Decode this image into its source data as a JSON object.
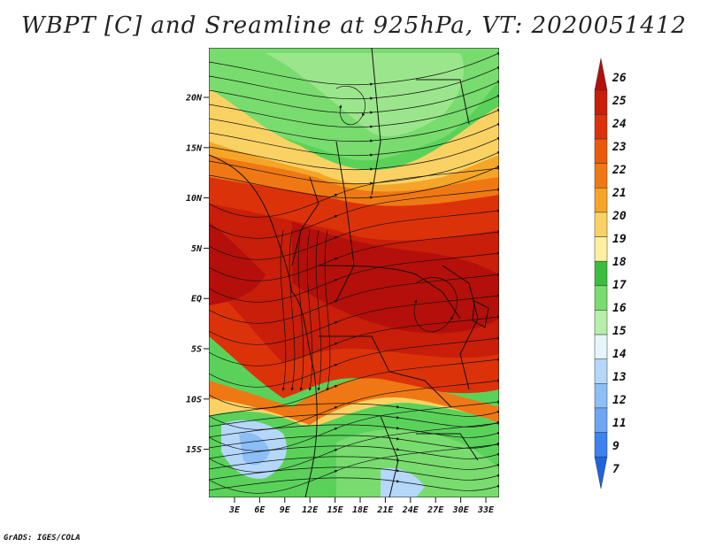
{
  "title": "WBPT [C] and Sreamline at 925hPa, VT: 2020051412",
  "credit": "GrADS: IGES/COLA",
  "map": {
    "lat_labels": [
      "20N",
      "15N",
      "10N",
      "5N",
      "EQ",
      "5S",
      "10S",
      "15S"
    ],
    "lon_labels": [
      "3E",
      "6E",
      "9E",
      "12E",
      "15E",
      "18E",
      "21E",
      "24E",
      "27E",
      "30E",
      "33E"
    ]
  },
  "colorbar": {
    "levels": [
      "7",
      "9",
      "11",
      "12",
      "13",
      "14",
      "15",
      "16",
      "17",
      "18",
      "19",
      "20",
      "21",
      "22",
      "23",
      "24",
      "25",
      "26"
    ],
    "colors": [
      "#1e64dc",
      "#3c82f0",
      "#6ea5f5",
      "#8cbef8",
      "#b4d7fa",
      "#e6f5fa",
      "#b4f0aa",
      "#78dc6e",
      "#3cbe3c",
      "#fff0a0",
      "#fad264",
      "#f5a528",
      "#f07814",
      "#eb5a0a",
      "#dc320a",
      "#c81e0a",
      "#b40f0a"
    ]
  }
}
